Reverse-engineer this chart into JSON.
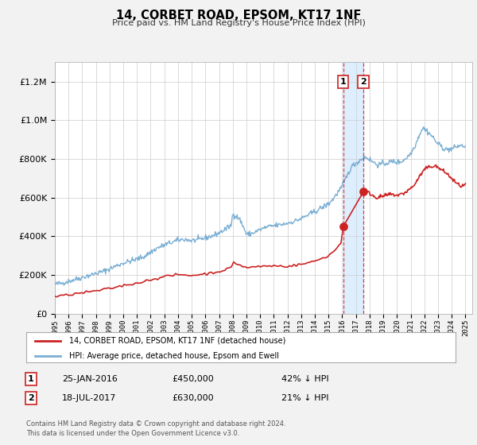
{
  "title": "14, CORBET ROAD, EPSOM, KT17 1NF",
  "subtitle": "Price paid vs. HM Land Registry's House Price Index (HPI)",
  "red_label": "14, CORBET ROAD, EPSOM, KT17 1NF (detached house)",
  "blue_label": "HPI: Average price, detached house, Epsom and Ewell",
  "transaction1": {
    "label": "1",
    "date": "25-JAN-2016",
    "price": 450000,
    "pct": "42% ↓ HPI",
    "date_num": 2016.07
  },
  "transaction2": {
    "label": "2",
    "date": "18-JUL-2017",
    "price": 630000,
    "pct": "21% ↓ HPI",
    "date_num": 2017.54
  },
  "ylim": [
    0,
    1300000
  ],
  "xlim_start": 1995.0,
  "xlim_end": 2025.5,
  "footnote1": "Contains HM Land Registry data © Crown copyright and database right 2024.",
  "footnote2": "This data is licensed under the Open Government Licence v3.0.",
  "background_color": "#f2f2f2",
  "plot_bg_color": "#ffffff",
  "red_color": "#cc2222",
  "blue_color": "#7aafd4",
  "shade_color": "#ddeeff",
  "grid_color": "#cccccc"
}
